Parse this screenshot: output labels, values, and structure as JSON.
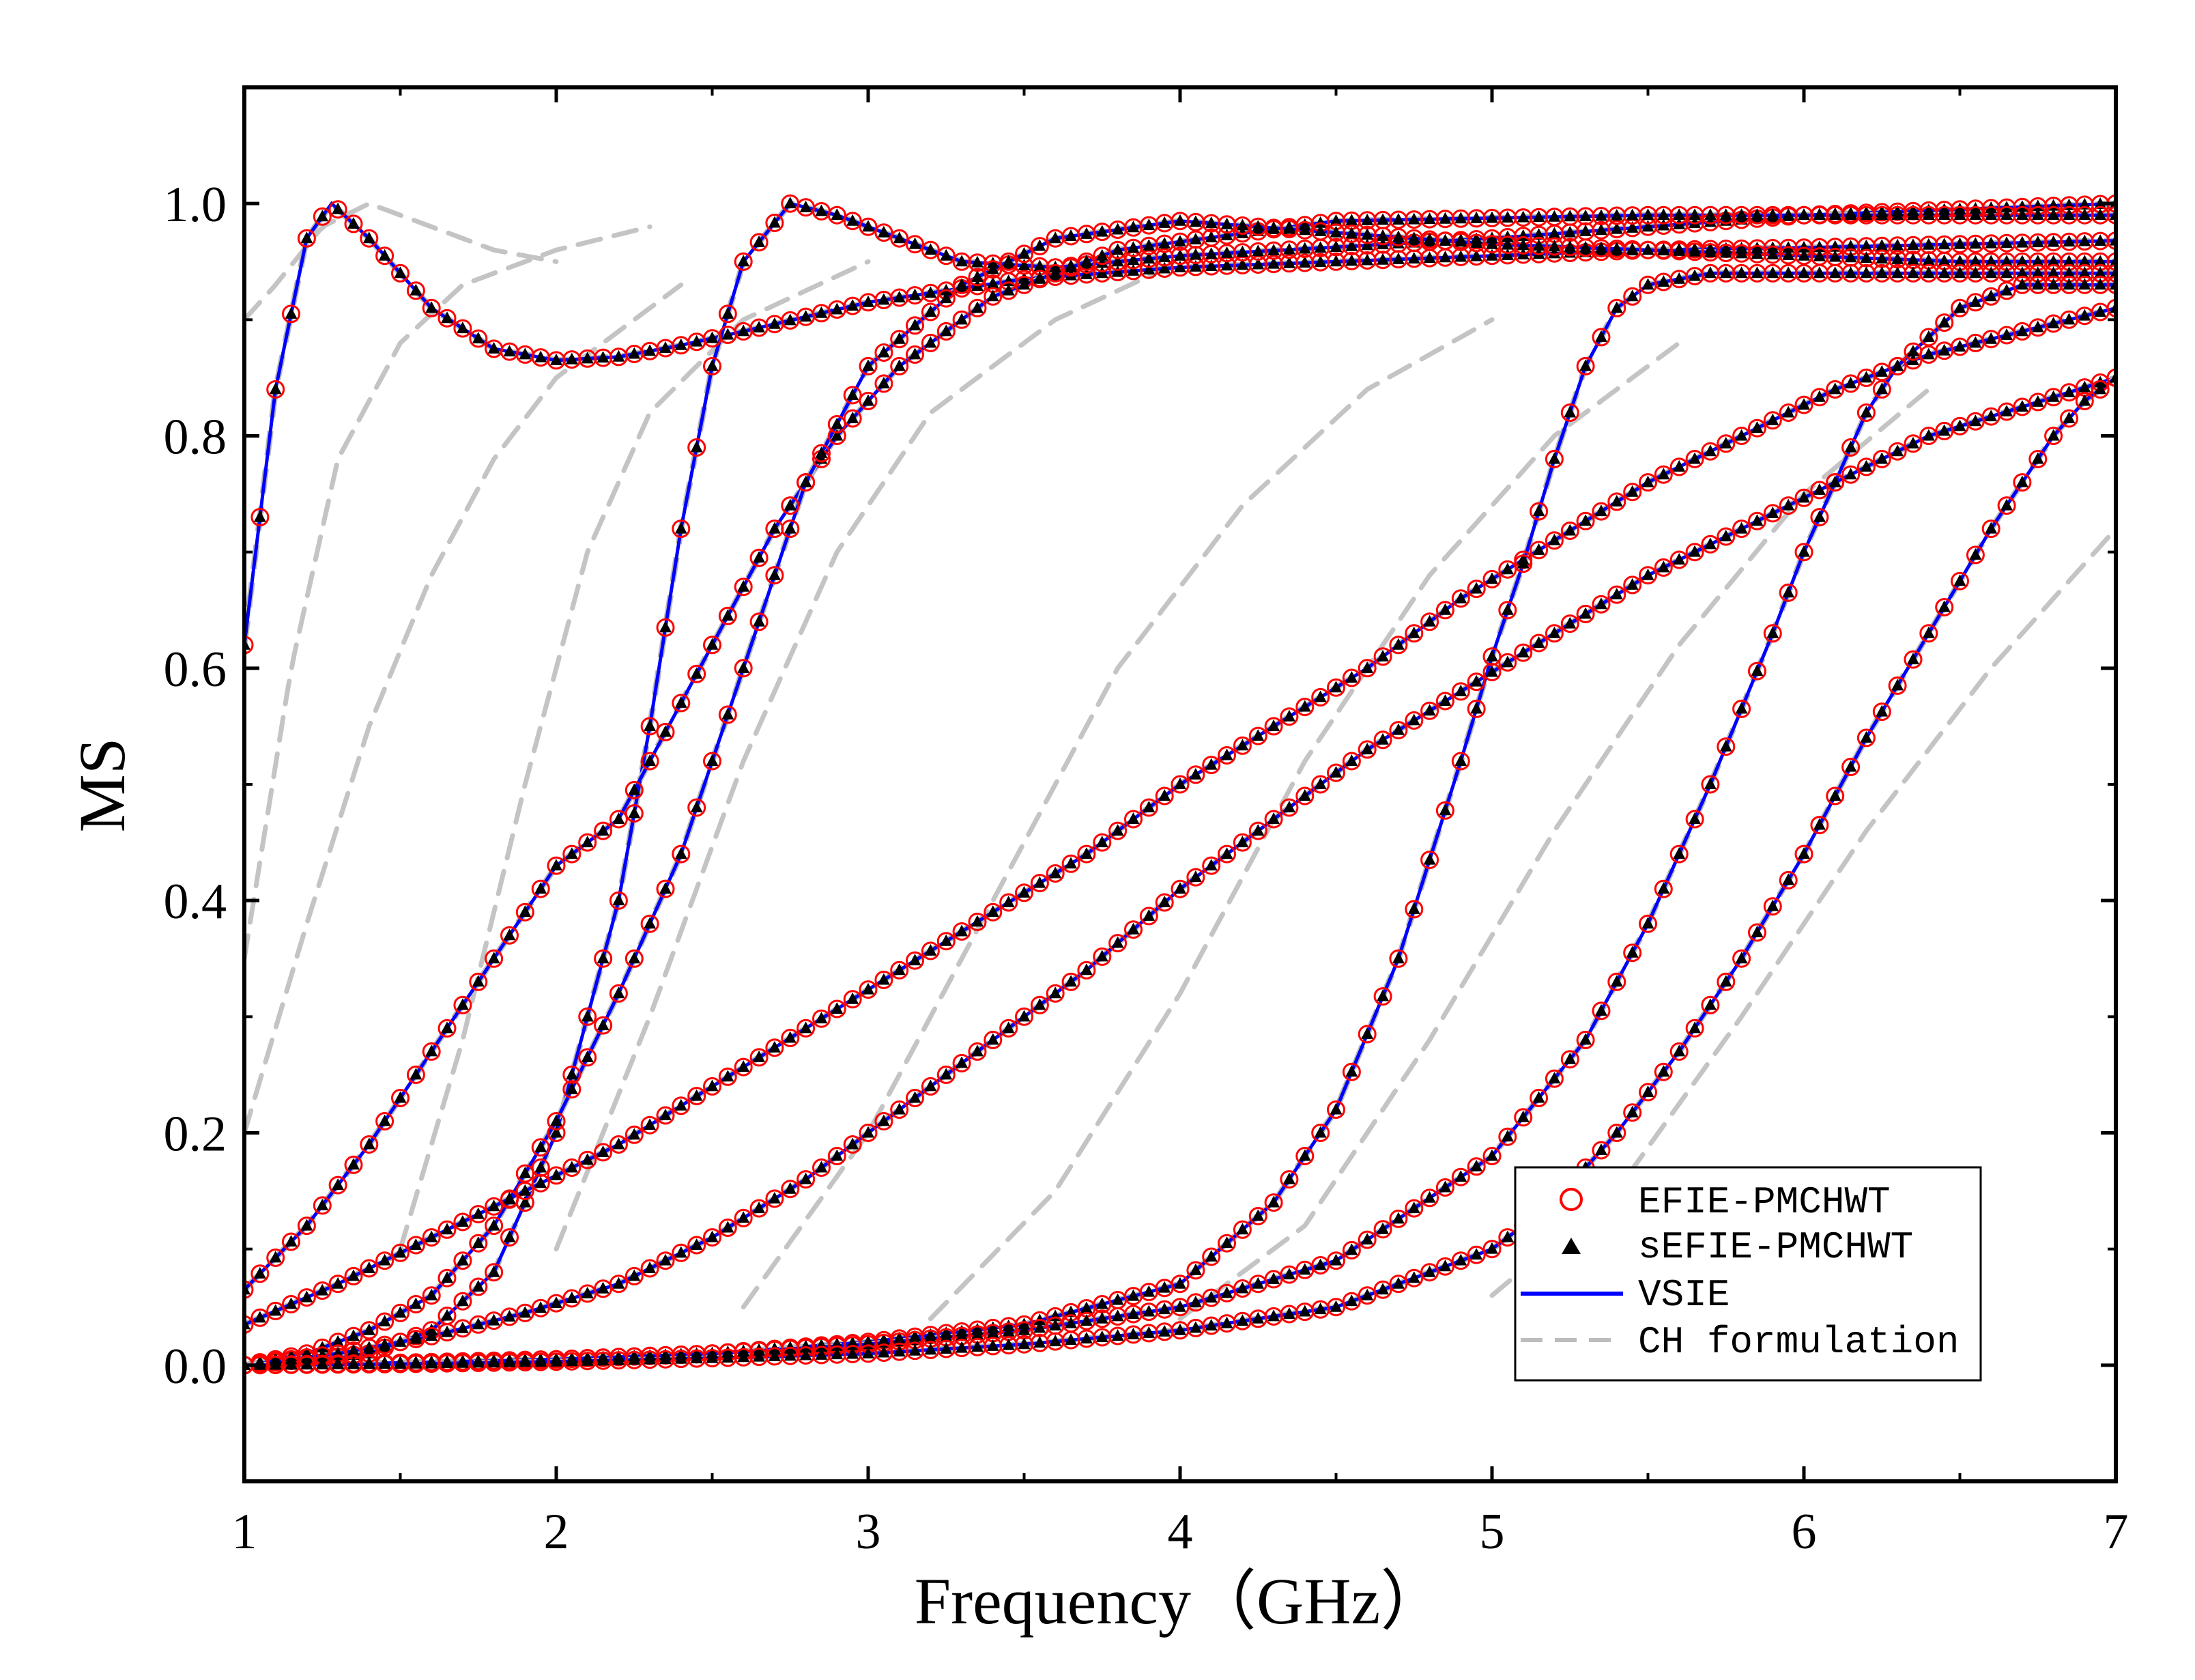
{
  "chart_data": {
    "type": "line",
    "xlabel": "Frequency（GHz）",
    "ylabel": "MS",
    "xlim": [
      1,
      7
    ],
    "ylim": [
      -0.1,
      1.1
    ],
    "x_ticks": [
      "1",
      "2",
      "3",
      "4",
      "5",
      "6",
      "7"
    ],
    "y_ticks": [
      "0.0",
      "0.2",
      "0.4",
      "0.6",
      "0.8",
      "1.0"
    ],
    "grid": false,
    "legend_position": "bottom-right",
    "legend": [
      {
        "label": "EFIE-PMCHWT",
        "marker": "open-circle",
        "color": "#ff0000"
      },
      {
        "label": "sEFIE-PMCHWT",
        "marker": "filled-triangle",
        "color": "#000000"
      },
      {
        "label": "VSIE",
        "marker": "solid-line",
        "color": "#0000ff"
      },
      {
        "label": "CH formulation",
        "marker": "dashed-line",
        "color": "#bdbdbd"
      }
    ],
    "modes": [
      {
        "x": [
          1.0,
          1.1,
          1.2,
          1.28,
          1.4,
          1.6,
          1.8,
          2.0,
          2.2,
          2.4,
          2.6,
          3.0,
          3.5,
          4.0,
          4.5,
          5.0,
          5.5,
          6.0,
          6.5,
          7.0
        ],
        "y": [
          0.62,
          0.84,
          0.97,
          1.0,
          0.97,
          0.91,
          0.875,
          0.865,
          0.868,
          0.878,
          0.89,
          0.915,
          0.935,
          0.945,
          0.95,
          0.955,
          0.96,
          0.962,
          0.965,
          0.968
        ]
      },
      {
        "x": [
          1.0,
          1.2,
          1.4,
          1.6,
          1.8,
          2.0,
          2.2,
          2.3,
          2.4,
          2.5,
          2.6,
          2.75,
          2.9,
          3.1,
          3.3,
          3.6,
          4.0,
          5.0,
          6.0,
          7.0
        ],
        "y": [
          0.0,
          0.005,
          0.01,
          0.03,
          0.08,
          0.2,
          0.4,
          0.55,
          0.72,
          0.86,
          0.95,
          1.0,
          0.99,
          0.97,
          0.95,
          0.945,
          0.955,
          0.97,
          0.99,
          1.0
        ]
      },
      {
        "x": [
          1.0,
          1.2,
          1.4,
          1.6,
          1.8,
          1.9,
          2.0,
          2.1,
          2.2,
          2.3,
          2.5,
          2.7,
          2.9,
          3.1,
          3.4,
          3.8,
          4.5,
          5.5,
          6.5,
          7.0
        ],
        "y": [
          0.065,
          0.12,
          0.19,
          0.27,
          0.35,
          0.39,
          0.43,
          0.45,
          0.47,
          0.52,
          0.62,
          0.72,
          0.8,
          0.86,
          0.92,
          0.96,
          0.985,
          0.99,
          0.99,
          0.99
        ]
      },
      {
        "x": [
          1.0,
          1.2,
          1.4,
          1.6,
          1.8,
          2.0,
          2.2,
          2.4,
          2.6,
          2.8,
          3.0,
          3.3,
          3.6,
          4.0,
          4.5,
          5.0,
          5.5,
          6.0,
          6.5,
          7.0
        ],
        "y": [
          0.0,
          0.01,
          0.03,
          0.06,
          0.12,
          0.21,
          0.32,
          0.44,
          0.6,
          0.76,
          0.86,
          0.93,
          0.97,
          0.985,
          0.975,
          0.965,
          0.96,
          0.955,
          0.95,
          0.95
        ]
      },
      {
        "x": [
          1.0,
          1.3,
          1.6,
          1.9,
          2.2,
          2.5,
          2.8,
          3.1,
          3.4,
          3.7,
          4.0,
          4.3,
          4.6,
          4.9,
          5.2,
          5.5,
          5.8,
          6.1,
          6.4,
          7.0
        ],
        "y": [
          0.035,
          0.07,
          0.11,
          0.15,
          0.19,
          0.24,
          0.29,
          0.34,
          0.39,
          0.44,
          0.5,
          0.55,
          0.6,
          0.66,
          0.71,
          0.76,
          0.8,
          0.84,
          0.87,
          0.91
        ]
      },
      {
        "x": [
          1.0,
          1.3,
          1.6,
          1.9,
          2.2,
          2.5,
          2.8,
          3.1,
          3.4,
          3.7,
          4.0,
          4.3,
          4.6,
          4.9,
          5.2,
          5.5,
          5.8,
          6.1,
          6.4,
          7.0
        ],
        "y": [
          0.0,
          0.01,
          0.025,
          0.045,
          0.07,
          0.11,
          0.16,
          0.22,
          0.28,
          0.34,
          0.41,
          0.47,
          0.53,
          0.58,
          0.63,
          0.68,
          0.72,
          0.76,
          0.8,
          0.85
        ]
      },
      {
        "x": [
          1.0,
          1.5,
          2.0,
          2.5,
          3.0,
          3.5,
          4.0,
          4.3,
          4.5,
          4.7,
          4.9,
          5.0,
          5.1,
          5.2,
          5.3,
          5.4,
          5.5,
          5.7,
          6.0,
          7.0
        ],
        "y": [
          0.0,
          0.002,
          0.005,
          0.01,
          0.02,
          0.035,
          0.07,
          0.14,
          0.22,
          0.35,
          0.52,
          0.61,
          0.69,
          0.78,
          0.86,
          0.91,
          0.93,
          0.94,
          0.94,
          0.94
        ]
      },
      {
        "x": [
          1.0,
          1.5,
          2.0,
          2.5,
          3.0,
          3.5,
          4.0,
          4.5,
          5.0,
          5.3,
          5.5,
          5.7,
          5.9,
          6.0,
          6.1,
          6.2,
          6.3,
          6.5,
          6.7,
          7.0
        ],
        "y": [
          0.0,
          0.002,
          0.005,
          0.01,
          0.018,
          0.03,
          0.05,
          0.09,
          0.18,
          0.28,
          0.38,
          0.5,
          0.63,
          0.7,
          0.76,
          0.82,
          0.86,
          0.91,
          0.93,
          0.93
        ]
      },
      {
        "x": [
          1.0,
          1.5,
          2.0,
          2.5,
          3.0,
          3.5,
          4.0,
          4.5,
          5.0,
          5.2,
          5.4,
          5.6,
          5.8,
          6.0,
          6.2,
          6.4,
          6.6,
          6.8,
          6.9,
          7.0
        ],
        "y": [
          0.0,
          0.001,
          0.003,
          0.006,
          0.01,
          0.018,
          0.03,
          0.05,
          0.1,
          0.14,
          0.2,
          0.27,
          0.35,
          0.44,
          0.54,
          0.63,
          0.72,
          0.8,
          0.83,
          0.85
        ]
      }
    ],
    "ch_formulation_dashes": [
      {
        "x": [
          1.0,
          1.1,
          1.25,
          1.4,
          1.6,
          1.8,
          2.0
        ],
        "y": [
          0.9,
          0.93,
          0.98,
          1.0,
          0.98,
          0.96,
          0.95
        ]
      },
      {
        "x": [
          1.0,
          1.15,
          1.3,
          1.5,
          1.7,
          2.0,
          2.3
        ],
        "y": [
          0.35,
          0.6,
          0.78,
          0.88,
          0.93,
          0.96,
          0.98
        ]
      },
      {
        "x": [
          1.0,
          1.2,
          1.4,
          1.6,
          1.8,
          2.0,
          2.4
        ],
        "y": [
          0.2,
          0.38,
          0.55,
          0.68,
          0.78,
          0.85,
          0.93
        ]
      },
      {
        "x": [
          1.5,
          1.7,
          1.9,
          2.1,
          2.3,
          2.6,
          3.0
        ],
        "y": [
          0.1,
          0.28,
          0.5,
          0.7,
          0.82,
          0.9,
          0.95
        ]
      },
      {
        "x": [
          2.0,
          2.3,
          2.6,
          2.9,
          3.2,
          3.6,
          4.0
        ],
        "y": [
          0.1,
          0.3,
          0.52,
          0.7,
          0.82,
          0.9,
          0.95
        ]
      },
      {
        "x": [
          2.6,
          3.0,
          3.4,
          3.8,
          4.2,
          4.6,
          5.0
        ],
        "y": [
          0.05,
          0.2,
          0.4,
          0.6,
          0.74,
          0.84,
          0.9
        ]
      },
      {
        "x": [
          3.2,
          3.6,
          4.0,
          4.4,
          4.8,
          5.2,
          5.6
        ],
        "y": [
          0.04,
          0.15,
          0.32,
          0.52,
          0.68,
          0.8,
          0.88
        ]
      },
      {
        "x": [
          4.0,
          4.4,
          4.8,
          5.2,
          5.6,
          6.0,
          6.4
        ],
        "y": [
          0.04,
          0.12,
          0.28,
          0.46,
          0.62,
          0.75,
          0.84
        ]
      },
      {
        "x": [
          5.0,
          5.4,
          5.8,
          6.2,
          6.6,
          7.0
        ],
        "y": [
          0.06,
          0.15,
          0.3,
          0.46,
          0.6,
          0.72
        ]
      }
    ]
  }
}
